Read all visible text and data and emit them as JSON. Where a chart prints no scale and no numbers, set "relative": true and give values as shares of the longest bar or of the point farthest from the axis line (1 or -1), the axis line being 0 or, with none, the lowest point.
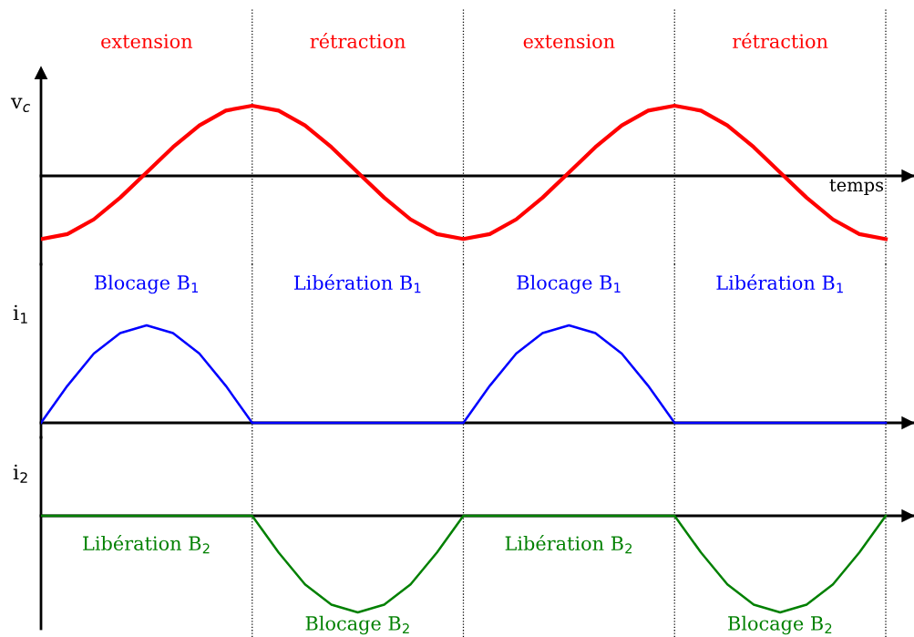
{
  "chart_data": [
    {
      "type": "line",
      "relative": true,
      "grid": "x",
      "ylabel": "v$_{c}$",
      "xlabel": "temps",
      "categories": [
        null,
        null,
        null,
        null,
        null,
        null,
        null,
        null,
        null,
        null,
        null,
        null,
        null,
        null,
        null,
        null,
        null,
        null,
        null,
        null,
        null,
        null,
        null,
        null,
        null,
        null,
        null,
        null,
        null,
        null,
        null,
        null,
        null
      ],
      "series": [
        {
          "color": "#ff0000",
          "values": [
            -0.9,
            -0.83,
            -0.62,
            -0.31,
            0.05,
            0.41,
            0.72,
            0.93,
            1,
            0.93,
            0.72,
            0.41,
            0.05,
            -0.31,
            -0.62,
            -0.83,
            -0.9,
            -0.83,
            -0.62,
            -0.31,
            0.05,
            0.41,
            0.72,
            0.93,
            1,
            0.93,
            0.72,
            0.41,
            0.05,
            -0.31,
            -0.62,
            -0.83,
            -0.9
          ]
        }
      ],
      "annotations": [
        "extension",
        "rétraction",
        "extension",
        "rétraction"
      ]
    },
    {
      "type": "line",
      "relative": true,
      "grid": "x",
      "ylabel": "i$_{1}$",
      "categories": [
        null,
        null,
        null,
        null,
        null,
        null,
        null,
        null,
        null,
        null,
        null,
        null,
        null,
        null,
        null,
        null,
        null,
        null,
        null,
        null,
        null,
        null,
        null,
        null,
        null,
        null,
        null,
        null,
        null,
        null,
        null,
        null,
        null
      ],
      "series": [
        {
          "color": "#0000ff",
          "values": [
            0,
            0.38,
            0.71,
            0.92,
            1,
            0.92,
            0.71,
            0.38,
            0,
            0,
            0,
            0,
            0,
            0,
            0,
            0,
            0,
            0.38,
            0.71,
            0.92,
            1,
            0.92,
            0.71,
            0.38,
            0,
            0,
            0,
            0,
            0,
            0,
            0,
            0,
            0
          ]
        }
      ],
      "annotations": [
        "Blocage B$_{1}$",
        "Libération B$_{1}$",
        "Blocage B$_{1}$",
        "Libération B$_{1}$"
      ]
    },
    {
      "type": "line",
      "relative": true,
      "grid": "x",
      "ylabel": "i$_{2}$",
      "categories": [
        null,
        null,
        null,
        null,
        null,
        null,
        null,
        null,
        null,
        null,
        null,
        null,
        null,
        null,
        null,
        null,
        null,
        null,
        null,
        null,
        null,
        null,
        null,
        null,
        null,
        null,
        null,
        null,
        null,
        null,
        null,
        null,
        null
      ],
      "series": [
        {
          "color": "#008000",
          "values": [
            0,
            0,
            0,
            0,
            0,
            0,
            0,
            0,
            0,
            -0.38,
            -0.71,
            -0.92,
            -1,
            -0.92,
            -0.71,
            -0.38,
            0,
            0,
            0,
            0,
            0,
            0,
            0,
            0,
            0,
            -0.38,
            -0.71,
            -0.92,
            -1,
            -0.92,
            -0.71,
            -0.38,
            0
          ]
        }
      ],
      "annotations": [
        "Libération B$_{2}$",
        "Blocage B$_{2}$",
        "Libération B$_{2}$",
        "Blocage B$_{2}$"
      ]
    }
  ]
}
